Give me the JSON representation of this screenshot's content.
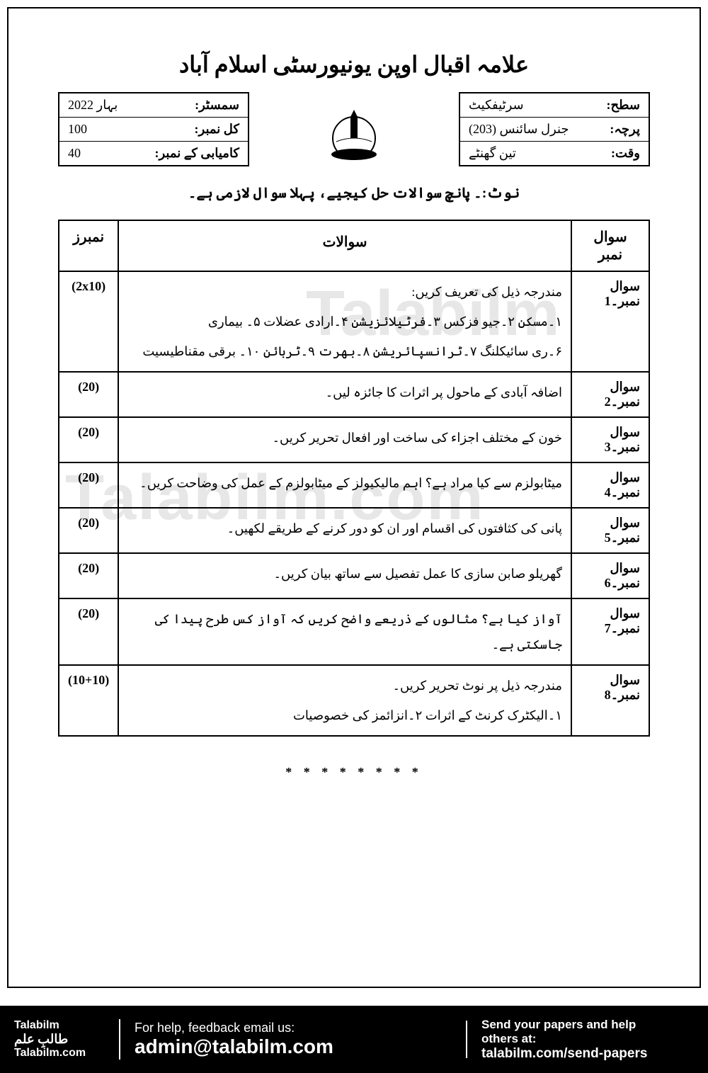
{
  "university_title": "علامہ اقبال اوپن یونیورسٹی اسلام آباد",
  "right_box": {
    "row1_label": "سطح:",
    "row1_value": "سرٹیفکیٹ",
    "row2_label": "پرچہ:",
    "row2_value": "جنرل سائنس (203)",
    "row3_label": "وقت:",
    "row3_value": "تین گھنٹے"
  },
  "left_box": {
    "row1_label": "سمسٹر:",
    "row1_value": "بہار 2022",
    "row2_label": "کل نمبر:",
    "row2_value": "100",
    "row3_label": "کامیابی کے نمبر:",
    "row3_value": "40"
  },
  "note": "نوٹ:۔ پانچ سوالات حل کیجیے، پہلا سوال لازمی ہے۔",
  "table_headers": {
    "qnum": "سوال نمبر",
    "question": "سوالات",
    "marks": "نمبرز"
  },
  "questions": [
    {
      "num": "سوال نمبر۔1",
      "text": "مندرجہ ذیل کی تعریف کریں:",
      "sub1": "۱۔مسکن  ۲۔جیو فزکس  ۳۔فرٹیلائزیشن  ۴۔ارادی عضلات  ۵۔ بیماری",
      "sub2": "۶۔ری سائیکلنگ  ۷۔ٹرانسپائریشن  ۸۔بھرت  ۹۔ٹربائن  ۱۰۔ برقی مقناطیسیت",
      "marks": "(2x10)"
    },
    {
      "num": "سوال نمبر۔2",
      "text": "اضافہ آبادی کے ماحول پر اثرات کا جائزہ لیں۔",
      "marks": "(20)"
    },
    {
      "num": "سوال نمبر۔3",
      "text": "خون کے مختلف اجزاء کی ساخت اور افعال تحریر کریں۔",
      "marks": "(20)"
    },
    {
      "num": "سوال نمبر۔4",
      "text": "میٹابولزم سے کیا مراد ہے؟ اہم مالیکیولز کے میٹابولزم کے عمل کی وضاحت کریں۔",
      "marks": "(20)"
    },
    {
      "num": "سوال نمبر۔5",
      "text": "پانی کی کثافتوں کی اقسام اور ان کو دور کرنے کے طریقے لکھیں۔",
      "marks": "(20)"
    },
    {
      "num": "سوال نمبر۔6",
      "text": "گھریلو صابن سازی کا عمل تفصیل سے ساتھ بیان کریں۔",
      "marks": "(20)"
    },
    {
      "num": "سوال نمبر۔7",
      "text": "آواز کیا ہے؟ مثالوں کے ذریعے واضح کریں کہ آواز کس طرح پیدا کی جاسکتی ہے۔",
      "marks": "(20)"
    },
    {
      "num": "سوال نمبر۔8",
      "text": "مندرجہ ذیل پر نوٹ تحریر کریں۔",
      "sub1": "۱۔الیکٹرک کرنٹ کے اثرات  ۲۔انزائمز کی خصوصیات",
      "marks": "(10+10)"
    }
  ],
  "stars": "* * * * * * * *",
  "watermark1": "Talabilm",
  "watermark2": "Talabilm.com",
  "footer": {
    "brand_en": "Talabilm",
    "brand_ur": "طالبِ علم",
    "brand_site": "Talabilm.com",
    "mid_line1": "For help, feedback email us:",
    "mid_line2": "admin@talabilm.com",
    "right_line1": "Send your papers and help",
    "right_line2": "others at:",
    "right_line3": "talabilm.com/send-papers"
  }
}
